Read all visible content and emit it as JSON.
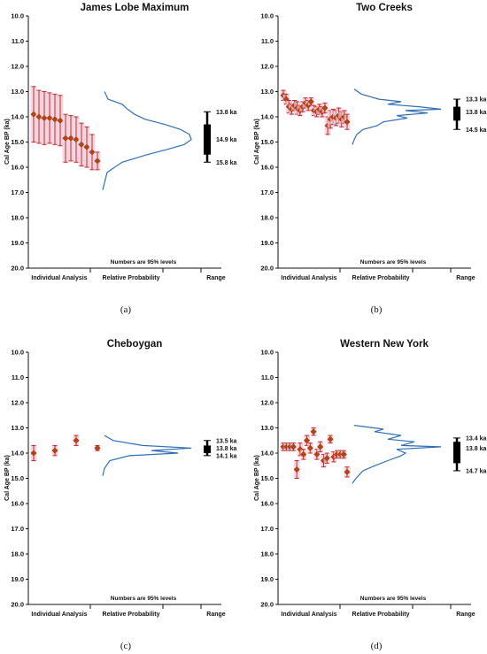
{
  "chart_data": [
    {
      "type": "scatter",
      "title": "James Lobe Maximum",
      "caption": "(a)",
      "ylabel": "Cal Age BP (ka)",
      "ylim": [
        10.0,
        20.0
      ],
      "y_reversed": true,
      "yticks": [
        "10.0",
        "11.0",
        "12.0",
        "13.0",
        "14.0",
        "15.0",
        "16.0",
        "17.0",
        "18.0",
        "19.0",
        "20.0"
      ],
      "footnote": "Numbers are 95% levels",
      "x_section_labels": [
        "Individual Analysis",
        "Relative Probability",
        "Range"
      ],
      "points": [
        {
          "age": 13.9,
          "err": 1.1
        },
        {
          "age": 14.0,
          "err": 1.05
        },
        {
          "age": 14.05,
          "err": 1.05
        },
        {
          "age": 14.05,
          "err": 1.0
        },
        {
          "age": 14.1,
          "err": 1.0
        },
        {
          "age": 14.15,
          "err": 1.0
        },
        {
          "age": 14.85,
          "err": 0.95
        },
        {
          "age": 14.85,
          "err": 0.9
        },
        {
          "age": 14.9,
          "err": 0.9
        },
        {
          "age": 15.1,
          "err": 0.85
        },
        {
          "age": 15.2,
          "err": 0.8
        },
        {
          "age": 15.4,
          "err": 0.7
        },
        {
          "age": 15.75,
          "err": 0.35
        }
      ],
      "probability_curve": [
        [
          13.0,
          0.02
        ],
        [
          13.3,
          0.06
        ],
        [
          13.5,
          0.22
        ],
        [
          13.7,
          0.28
        ],
        [
          13.9,
          0.36
        ],
        [
          14.1,
          0.48
        ],
        [
          14.3,
          0.7
        ],
        [
          14.5,
          0.88
        ],
        [
          14.7,
          0.98
        ],
        [
          14.9,
          1.0
        ],
        [
          15.1,
          0.92
        ],
        [
          15.3,
          0.72
        ],
        [
          15.5,
          0.5
        ],
        [
          15.8,
          0.22
        ],
        [
          16.2,
          0.05
        ],
        [
          16.9,
          0.0
        ]
      ],
      "range": {
        "low": 13.8,
        "mid": 14.9,
        "high": 15.8,
        "box_low": 14.3,
        "box_high": 15.5,
        "labels": [
          "13.8 ka",
          "14.9 ka",
          "15.8 ka"
        ]
      }
    },
    {
      "type": "scatter",
      "title": "Two Creeks",
      "caption": "(b)",
      "ylabel": "Cal Age BP (ka)",
      "ylim": [
        10.0,
        20.0
      ],
      "y_reversed": true,
      "yticks": [
        "10.0",
        "11.0",
        "12.0",
        "13.0",
        "14.0",
        "15.0",
        "16.0",
        "17.0",
        "18.0",
        "19.0",
        "20.0"
      ],
      "footnote": "Numbers are 95% levels",
      "x_section_labels": [
        "Individual Analysis",
        "Relative Probability",
        "Range"
      ],
      "points": [
        {
          "age": 13.15,
          "err": 0.2
        },
        {
          "age": 13.3,
          "err": 0.2
        },
        {
          "age": 13.6,
          "err": 0.25
        },
        {
          "age": 13.7,
          "err": 0.2
        },
        {
          "age": 13.55,
          "err": 0.2
        },
        {
          "age": 13.65,
          "err": 0.25
        },
        {
          "age": 13.75,
          "err": 0.2
        },
        {
          "age": 13.6,
          "err": 0.2
        },
        {
          "age": 13.45,
          "err": 0.2
        },
        {
          "age": 13.55,
          "err": 0.2
        },
        {
          "age": 13.4,
          "err": 0.15
        },
        {
          "age": 13.75,
          "err": 0.2
        },
        {
          "age": 13.8,
          "err": 0.2
        },
        {
          "age": 13.7,
          "err": 0.2
        },
        {
          "age": 13.8,
          "err": 0.2
        },
        {
          "age": 13.65,
          "err": 0.2
        },
        {
          "age": 14.35,
          "err": 0.35
        },
        {
          "age": 14.1,
          "err": 0.35
        },
        {
          "age": 14.0,
          "err": 0.3
        },
        {
          "age": 14.05,
          "err": 0.3
        },
        {
          "age": 13.95,
          "err": 0.3
        },
        {
          "age": 14.1,
          "err": 0.3
        },
        {
          "age": 14.0,
          "err": 0.25
        },
        {
          "age": 14.2,
          "err": 0.3
        }
      ],
      "probability_curve": [
        [
          12.9,
          0.02
        ],
        [
          13.1,
          0.1
        ],
        [
          13.3,
          0.3
        ],
        [
          13.4,
          0.55
        ],
        [
          13.5,
          0.4
        ],
        [
          13.6,
          0.75
        ],
        [
          13.7,
          1.0
        ],
        [
          13.75,
          0.6
        ],
        [
          13.85,
          0.85
        ],
        [
          13.95,
          0.5
        ],
        [
          14.05,
          0.62
        ],
        [
          14.2,
          0.35
        ],
        [
          14.35,
          0.28
        ],
        [
          14.5,
          0.12
        ],
        [
          14.7,
          0.05
        ],
        [
          14.9,
          0.02
        ],
        [
          15.1,
          0.0
        ]
      ],
      "range": {
        "low": 13.3,
        "mid": 13.8,
        "high": 14.5,
        "box_low": 13.6,
        "box_high": 14.15,
        "labels": [
          "13.3 ka",
          "13.8 ka",
          "14.5 ka"
        ]
      }
    },
    {
      "type": "scatter",
      "title": "Cheboygan",
      "caption": "(c)",
      "ylabel": "Cal Age BP (ka)",
      "ylim": [
        10.0,
        20.0
      ],
      "y_reversed": true,
      "yticks": [
        "10.0",
        "11.0",
        "12.0",
        "13.0",
        "14.0",
        "15.0",
        "16.0",
        "17.0",
        "18.0",
        "19.0",
        "20.0"
      ],
      "footnote": "Numbers are 95% levels",
      "x_section_labels": [
        "Individual Analysis",
        "Relative Probability",
        "Range"
      ],
      "points": [
        {
          "age": 14.0,
          "err": 0.3
        },
        {
          "age": 13.9,
          "err": 0.2
        },
        {
          "age": 13.5,
          "err": 0.2
        },
        {
          "age": 13.8,
          "err": 0.1
        }
      ],
      "probability_curve": [
        [
          13.3,
          0.02
        ],
        [
          13.5,
          0.12
        ],
        [
          13.7,
          0.45
        ],
        [
          13.8,
          1.0
        ],
        [
          13.9,
          0.55
        ],
        [
          14.0,
          0.85
        ],
        [
          14.1,
          0.3
        ],
        [
          14.3,
          0.08
        ],
        [
          14.6,
          0.02
        ],
        [
          14.9,
          0.0
        ]
      ],
      "range": {
        "low": 13.5,
        "mid": 13.8,
        "high": 14.1,
        "box_low": 13.7,
        "box_high": 14.0,
        "labels": [
          "13.5 ka",
          "13.8 ka",
          "14.1 ka"
        ]
      }
    },
    {
      "type": "scatter",
      "title": "Western New York",
      "caption": "(d)",
      "ylabel": "Cal Age BP (ka)",
      "ylim": [
        10.0,
        20.0
      ],
      "y_reversed": true,
      "yticks": [
        "10.0",
        "11.0",
        "12.0",
        "13.0",
        "14.0",
        "15.0",
        "16.0",
        "17.0",
        "18.0",
        "19.0",
        "20.0"
      ],
      "footnote": "Numbers are 95% levels",
      "x_section_labels": [
        "Individual Analysis",
        "Relative Probability",
        "Range"
      ],
      "points": [
        {
          "age": 13.75,
          "err": 0.15
        },
        {
          "age": 13.75,
          "err": 0.15
        },
        {
          "age": 13.75,
          "err": 0.15
        },
        {
          "age": 13.75,
          "err": 0.15
        },
        {
          "age": 14.65,
          "err": 0.35
        },
        {
          "age": 13.85,
          "err": 0.25
        },
        {
          "age": 14.05,
          "err": 0.2
        },
        {
          "age": 13.5,
          "err": 0.2
        },
        {
          "age": 13.8,
          "err": 0.2
        },
        {
          "age": 13.15,
          "err": 0.15
        },
        {
          "age": 14.05,
          "err": 0.2
        },
        {
          "age": 13.75,
          "err": 0.2
        },
        {
          "age": 14.3,
          "err": 0.25
        },
        {
          "age": 14.2,
          "err": 0.2
        },
        {
          "age": 13.45,
          "err": 0.15
        },
        {
          "age": 14.15,
          "err": 0.2
        },
        {
          "age": 14.05,
          "err": 0.15
        },
        {
          "age": 14.05,
          "err": 0.15
        },
        {
          "age": 14.05,
          "err": 0.15
        },
        {
          "age": 14.75,
          "err": 0.2
        }
      ],
      "probability_curve": [
        [
          12.9,
          0.02
        ],
        [
          13.05,
          0.35
        ],
        [
          13.15,
          0.25
        ],
        [
          13.3,
          0.55
        ],
        [
          13.45,
          0.4
        ],
        [
          13.55,
          0.7
        ],
        [
          13.7,
          0.55
        ],
        [
          13.75,
          1.0
        ],
        [
          13.85,
          0.5
        ],
        [
          14.0,
          0.6
        ],
        [
          14.1,
          0.55
        ],
        [
          14.3,
          0.4
        ],
        [
          14.5,
          0.25
        ],
        [
          14.7,
          0.12
        ],
        [
          15.0,
          0.04
        ],
        [
          15.2,
          0.0
        ]
      ],
      "range": {
        "low": 13.4,
        "mid": 13.8,
        "high": 14.7,
        "box_low": 13.55,
        "box_high": 14.4,
        "labels": [
          "13.4 ka",
          "13.8 ka",
          "14.7 ka"
        ]
      }
    }
  ]
}
